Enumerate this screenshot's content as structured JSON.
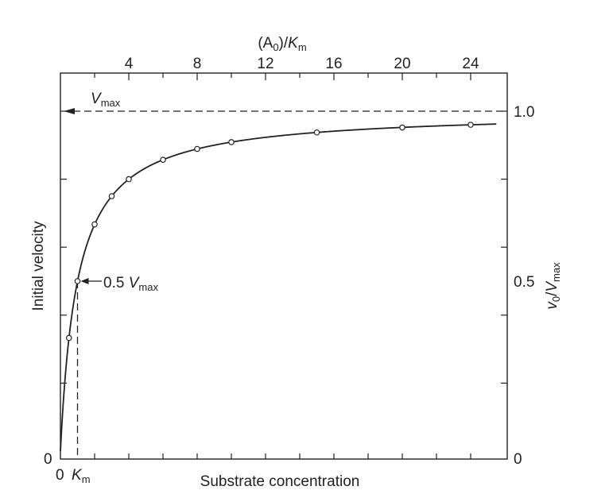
{
  "chart_data": {
    "type": "line",
    "title": "",
    "top_axis": {
      "label_prefix": "(A",
      "label_sub": "0",
      "label_mid": ")/",
      "label_italic": "K",
      "label_sub2": "m",
      "ticks": [
        4,
        8,
        12,
        16,
        20,
        24
      ],
      "tick_labels": [
        "4",
        "8",
        "12",
        "16",
        "20",
        "24"
      ],
      "range": [
        0,
        25.6
      ]
    },
    "bottom_axis": {
      "label": "Substrate concentration",
      "origin_label": "0",
      "km_label_italic": "K",
      "km_label_sub": "m"
    },
    "left_axis": {
      "label": "Initial velocity",
      "origin_label": "0"
    },
    "right_axis": {
      "label_italic_v": "v",
      "label_sub_0": "0",
      "label_slash": "/",
      "label_italic_V": "V",
      "label_sub_max": "max",
      "ticks": [
        0,
        0.5,
        1.0
      ],
      "tick_labels": [
        "0",
        "0.5",
        "1.0"
      ],
      "range": [
        0,
        1.0
      ]
    },
    "vmax_label": {
      "italic": "V",
      "sub": "max"
    },
    "km_annotation": {
      "prefix": "0.5 ",
      "italic": "V",
      "sub": "max",
      "x": 1,
      "y": 0.5
    },
    "series": [
      {
        "curve": "v0/Vmax = x/(1+x)",
        "points": [
          {
            "x": 0.5,
            "y": 0.333
          },
          {
            "x": 1,
            "y": 0.5
          },
          {
            "x": 2,
            "y": 0.667
          },
          {
            "x": 3,
            "y": 0.75
          },
          {
            "x": 4,
            "y": 0.8
          },
          {
            "x": 6,
            "y": 0.857
          },
          {
            "x": 8,
            "y": 0.889
          },
          {
            "x": 10,
            "y": 0.909
          },
          {
            "x": 15,
            "y": 0.9375
          },
          {
            "x": 20,
            "y": 0.952
          },
          {
            "x": 24,
            "y": 0.96
          }
        ]
      }
    ],
    "asymptote_y": 1.0,
    "grid": false
  }
}
